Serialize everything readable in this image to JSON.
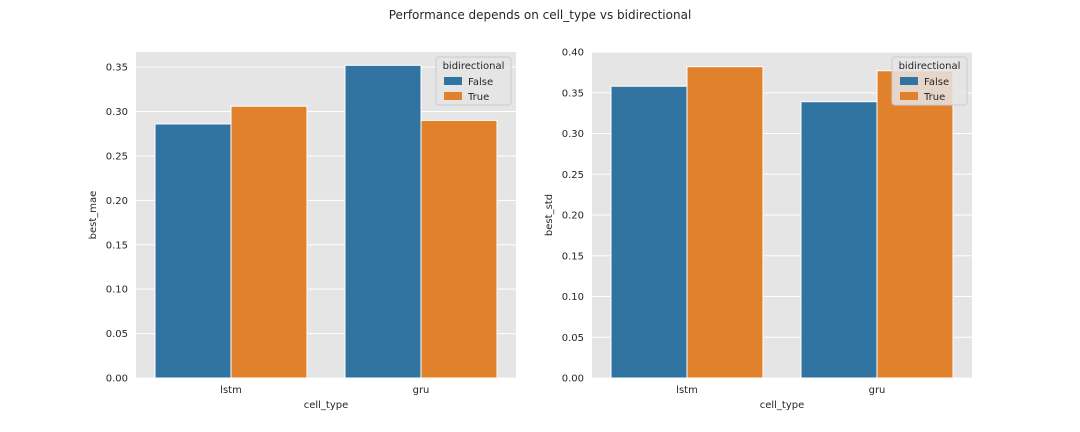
{
  "figure": {
    "title": "Performance depends on cell_type vs bidirectional"
  },
  "colors": {
    "False": "#3274a1",
    "True": "#e1812c",
    "panel_bg": "#e5e5e5",
    "grid": "#ffffff"
  },
  "chart_data": [
    {
      "type": "bar",
      "categories": [
        "lstm",
        "gru"
      ],
      "series": [
        {
          "name": "False",
          "values": [
            0.286,
            0.352
          ]
        },
        {
          "name": "True",
          "values": [
            0.306,
            0.29
          ]
        }
      ],
      "xlabel": "cell_type",
      "ylabel": "best_mae",
      "ylim": [
        0,
        0.367
      ],
      "yticks": [
        "0.00",
        "0.05",
        "0.10",
        "0.15",
        "0.20",
        "0.25",
        "0.30",
        "0.35"
      ],
      "legend": {
        "title": "bidirectional",
        "entries": [
          "False",
          "True"
        ],
        "placement": "top-right"
      },
      "grid": true
    },
    {
      "type": "bar",
      "categories": [
        "lstm",
        "gru"
      ],
      "series": [
        {
          "name": "False",
          "values": [
            0.358,
            0.339
          ]
        },
        {
          "name": "True",
          "values": [
            0.382,
            0.377
          ]
        }
      ],
      "xlabel": "cell_type",
      "ylabel": "best_std",
      "ylim": [
        0,
        0.4
      ],
      "yticks": [
        "0.00",
        "0.05",
        "0.10",
        "0.15",
        "0.20",
        "0.25",
        "0.30",
        "0.35",
        "0.40"
      ],
      "legend": {
        "title": "bidirectional",
        "entries": [
          "False",
          "True"
        ],
        "placement": "top-right"
      },
      "grid": true
    }
  ]
}
